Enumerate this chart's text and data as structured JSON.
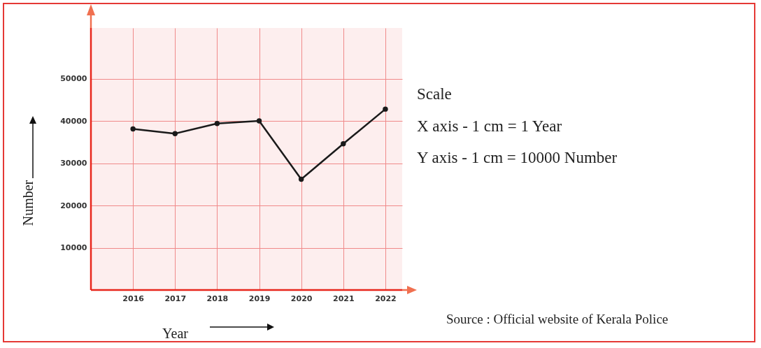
{
  "chart_data": {
    "type": "line",
    "xlabel": "Year",
    "ylabel": "Number",
    "x": [
      2016,
      2017,
      2018,
      2019,
      2020,
      2021,
      2022
    ],
    "series": [
      {
        "color": "#1a1a1a",
        "values": [
          38100,
          37000,
          39400,
          40000,
          26200,
          34600,
          42800
        ]
      }
    ],
    "xlim": [
      2015,
      2022.4
    ],
    "xticks": [
      2016,
      2017,
      2018,
      2019,
      2020,
      2021,
      2022
    ],
    "ylim": [
      0,
      62000
    ],
    "yticks": [
      10000,
      20000,
      30000,
      40000,
      50000
    ],
    "grid": true,
    "marker": "circle",
    "line_style": "solid",
    "annotations": [
      "Scale",
      "X axis - 1 cm = 1 Year",
      "Y axis - 1 cm = 10000 Number",
      "Source : Official website of Kerala Police"
    ]
  }
}
